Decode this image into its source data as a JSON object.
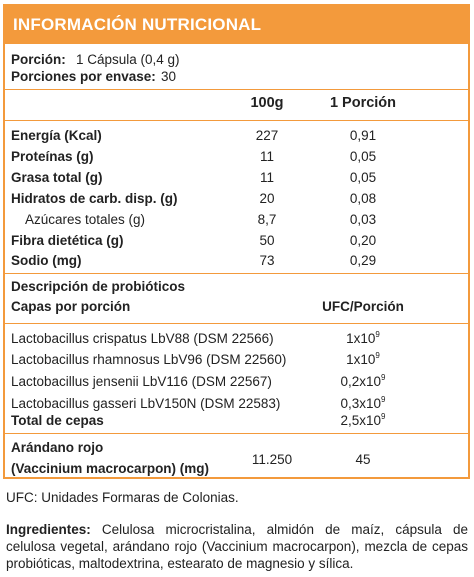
{
  "header": {
    "title": "INFORMACIÓN NUTRICIONAL"
  },
  "serving": {
    "portion_label": "Porción:",
    "portion_value": "1 Cápsula (0,4 g)",
    "per_container_label": "Porciones por envase:",
    "per_container_value": "30"
  },
  "columns": {
    "c100g": "100g",
    "portion": "1 Porción"
  },
  "nutrients": [
    {
      "name": "Energía (Kcal)",
      "per100": "227",
      "portion": "0,91"
    },
    {
      "name": "Proteínas (g)",
      "per100": "11",
      "portion": "0,05"
    },
    {
      "name": "Grasa total (g)",
      "per100": "11",
      "portion": "0,05"
    },
    {
      "name": "Hidratos de carb. disp. (g)",
      "per100": "20",
      "portion": "0,08"
    },
    {
      "name": "Azúcares totales (g)",
      "per100": "8,7",
      "portion": "0,03"
    },
    {
      "name": "Fibra dietética (g)",
      "per100": "50",
      "portion": "0,20"
    },
    {
      "name": "Sodio (mg)",
      "per100": "73",
      "portion": "0,29"
    }
  ],
  "probiotics": {
    "title": "Descripción de probióticos",
    "layers_label": "Capas por porción",
    "ufc_header": "UFC/Porción",
    "items": [
      {
        "name": "Lactobacillus crispatus LbV88 (DSM 22566)",
        "base": "1x10",
        "exp": "9"
      },
      {
        "name": "Lactobacillus rhamnosus LbV96 (DSM 22560)",
        "base": "1x10",
        "exp": "9"
      },
      {
        "name": "Lactobacillus jensenii LbV116 (DSM 22567)",
        "base": "0,2x10",
        "exp": "9"
      },
      {
        "name": "Lactobacillus gasseri LbV150N (DSM 22583)",
        "base": "0,3x10",
        "exp": "9"
      }
    ],
    "total": {
      "name": "Total de cepas",
      "base": "2,5x10",
      "exp": "9"
    }
  },
  "cranberry": {
    "line1": "Arándano rojo",
    "line2": "(Vaccinium macrocarpon) (mg)",
    "per100": "11.250",
    "portion": "45"
  },
  "footnote": "UFC: Unidades Formaras de Colonias.",
  "ingredients": {
    "label": "Ingredientes:",
    "text": " Celulosa microcristalina, almidón de maíz, cápsula de celulosa vegetal, arándano rojo (Vaccinium macrocarpon), mezcla de cepas probióticas, maltodextrina, estearato de magnesio y sílica."
  },
  "colors": {
    "accent": "#f39a3c",
    "text": "#222222",
    "header_text": "#ffffff"
  }
}
